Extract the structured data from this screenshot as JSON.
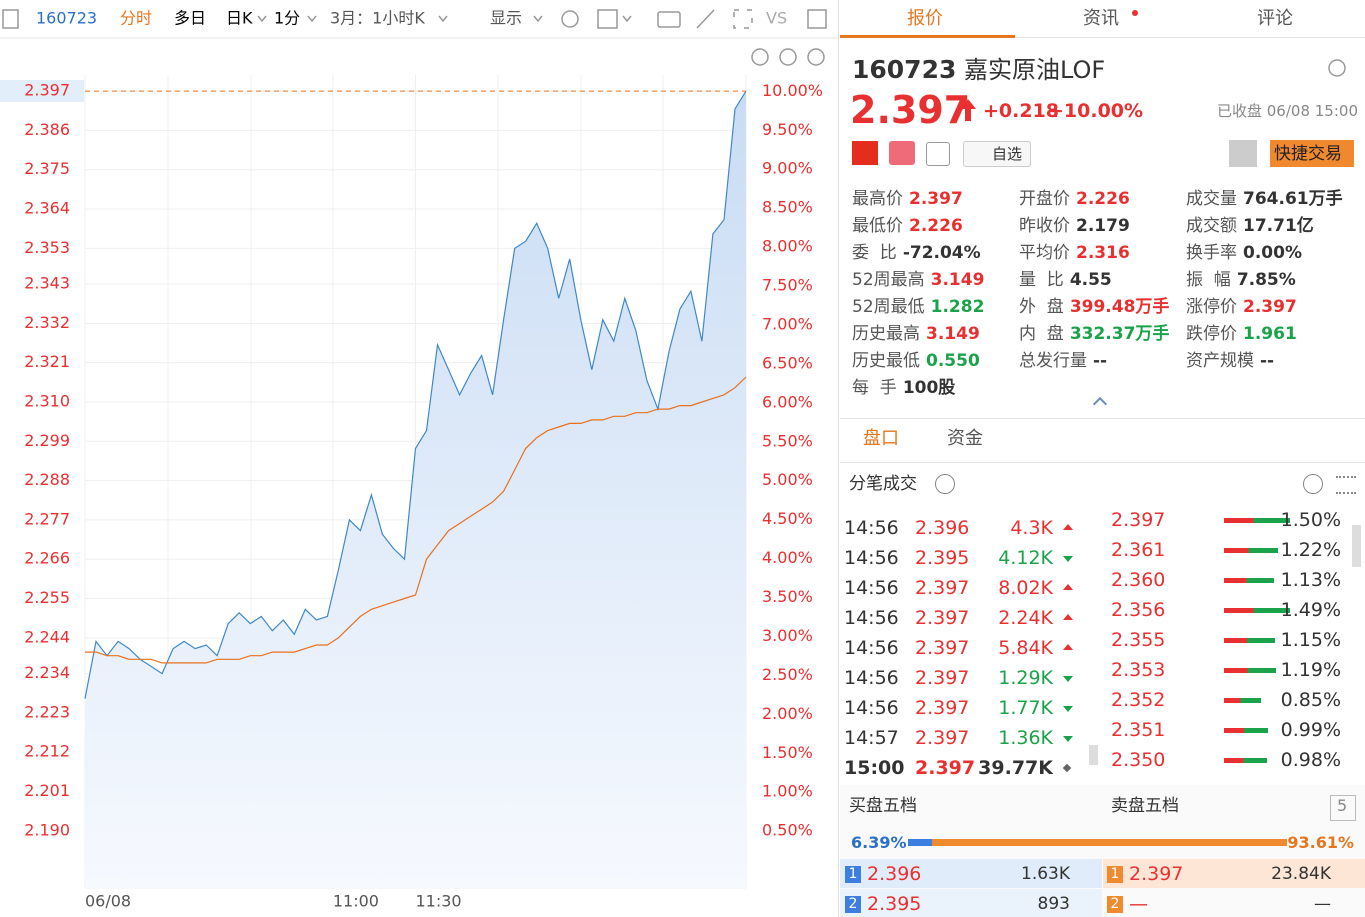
{
  "toolbar": {
    "code": "160723",
    "modes": [
      "分时",
      "多日",
      "日K",
      "1分"
    ],
    "active": 0,
    "range": "3月：1小时K",
    "display": "显示",
    "compare": "VS"
  },
  "chart_data": {
    "type": "line",
    "x": [
      0,
      4,
      8,
      12,
      16,
      20,
      24,
      28,
      32,
      36,
      40,
      44,
      48,
      52,
      56,
      60,
      64,
      68,
      72,
      76,
      80,
      84,
      88,
      92,
      96,
      100,
      104,
      108,
      112,
      116,
      120,
      124,
      128,
      132,
      136,
      140,
      144,
      148,
      152,
      156,
      160,
      164,
      168,
      172,
      176,
      180,
      184,
      188,
      192,
      196,
      200,
      204,
      208,
      212,
      216,
      220,
      224,
      228,
      232,
      236,
      240
    ],
    "xlim": [
      0,
      240
    ],
    "xticks": [
      {
        "value": 0,
        "label": "06/08"
      },
      {
        "value": 90,
        "label": "11:00"
      },
      {
        "value": 120,
        "label": "11:30"
      }
    ],
    "ylim": [
      2.174,
      2.4015
    ],
    "yticks": [
      2.397,
      2.386,
      2.375,
      2.364,
      2.353,
      2.343,
      2.332,
      2.321,
      {
        "value": 2.31,
        "label": "2.310"
      },
      2.299,
      2.288,
      2.277,
      2.266,
      2.255,
      2.244,
      2.234,
      2.223,
      2.212,
      2.201,
      {
        "value": 2.19,
        "label": "2.190"
      }
    ],
    "y2lim": [
      -0.23,
      10.21
    ],
    "y2ticks": [
      {
        "value": 10,
        "label": "10.00%"
      },
      {
        "value": 9.5,
        "label": "9.50%"
      },
      {
        "value": 9,
        "label": "9.00%"
      },
      {
        "value": 8.5,
        "label": "8.50%"
      },
      {
        "value": 8,
        "label": "8.00%"
      },
      {
        "value": 7.5,
        "label": "7.50%"
      },
      {
        "value": 7,
        "label": "7.00%"
      },
      {
        "value": 6.5,
        "label": "6.50%"
      },
      {
        "value": 6,
        "label": "6.00%"
      },
      {
        "value": 5.5,
        "label": "5.50%"
      },
      {
        "value": 5,
        "label": "5.00%"
      },
      {
        "value": 4.5,
        "label": "4.50%"
      },
      {
        "value": 4,
        "label": "4.00%"
      },
      {
        "value": 3.5,
        "label": "3.50%"
      },
      {
        "value": 3,
        "label": "3.00%"
      },
      {
        "value": 2.5,
        "label": "2.50%"
      },
      {
        "value": 2,
        "label": "2.00%"
      },
      {
        "value": 1.5,
        "label": "1.50%"
      },
      {
        "value": 1,
        "label": "1.00%"
      },
      {
        "value": 0.5,
        "label": "0.50%"
      }
    ],
    "grid": true,
    "series": [
      {
        "color": "#3f88c8",
        "area": true,
        "values": [
          2.227,
          2.243,
          2.239,
          2.243,
          2.241,
          2.238,
          2.236,
          2.234,
          2.241,
          2.243,
          2.241,
          2.242,
          2.239,
          2.248,
          2.251,
          2.248,
          2.25,
          2.246,
          2.249,
          2.245,
          2.252,
          2.249,
          2.25,
          2.263,
          2.277,
          2.274,
          2.284,
          2.273,
          2.269,
          2.266,
          2.297,
          2.302,
          2.326,
          2.319,
          2.312,
          2.318,
          2.323,
          2.312,
          2.333,
          2.353,
          2.355,
          2.36,
          2.353,
          2.339,
          2.35,
          2.333,
          2.319,
          2.333,
          2.327,
          2.339,
          2.33,
          2.316,
          2.308,
          2.324,
          2.336,
          2.341,
          2.327,
          2.357,
          2.361,
          2.392,
          2.397
        ]
      },
      {
        "color": "#e8701e",
        "values": [
          2.24,
          2.24,
          2.239,
          2.239,
          2.238,
          2.238,
          2.238,
          2.237,
          2.237,
          2.237,
          2.237,
          2.237,
          2.238,
          2.238,
          2.238,
          2.239,
          2.239,
          2.24,
          2.24,
          2.24,
          2.241,
          2.242,
          2.242,
          2.244,
          2.247,
          2.25,
          2.252,
          2.253,
          2.254,
          2.255,
          2.256,
          2.266,
          2.27,
          2.274,
          2.276,
          2.278,
          2.28,
          2.282,
          2.285,
          2.291,
          2.297,
          2.3,
          2.302,
          2.303,
          2.304,
          2.304,
          2.305,
          2.305,
          2.306,
          2.306,
          2.307,
          2.307,
          2.308,
          2.308,
          2.309,
          2.309,
          2.31,
          2.311,
          2.312,
          2.314,
          2.317
        ]
      }
    ]
  },
  "tabs": [
    "报价",
    "资讯",
    "评论"
  ],
  "quote": {
    "code": "160723",
    "name": "嘉实原油LOF",
    "price": "2.397",
    "change": "+0.218",
    "change_pct": "+10.00%",
    "status": "已收盘 06/08 15:00",
    "watch": "自选",
    "trade": "快捷交易",
    "stats": [
      [
        {
          "label": "最高价",
          "value": "2.397",
          "tone": "up"
        },
        {
          "label": "最低价",
          "value": "2.226",
          "tone": "up"
        },
        {
          "label": "委  比",
          "value": "-72.04%",
          "tone": "flat"
        },
        {
          "label": "52周最高",
          "value": "3.149",
          "tone": "up"
        },
        {
          "label": "52周最低",
          "value": "1.282",
          "tone": "down"
        },
        {
          "label": "历史最高",
          "value": "3.149",
          "tone": "up"
        },
        {
          "label": "历史最低",
          "value": "0.550",
          "tone": "down"
        },
        {
          "label": "每  手",
          "value": "100股",
          "tone": "flat"
        }
      ],
      [
        {
          "label": "开盘价",
          "value": "2.226",
          "tone": "up"
        },
        {
          "label": "昨收价",
          "value": "2.179",
          "tone": "flat"
        },
        {
          "label": "平均价",
          "value": "2.316",
          "tone": "up"
        },
        {
          "label": "量  比",
          "value": "4.55",
          "tone": "flat"
        },
        {
          "label": "外  盘",
          "value": "399.48万手",
          "tone": "up"
        },
        {
          "label": "内  盘",
          "value": "332.37万手",
          "tone": "down"
        },
        {
          "label": "总发行量",
          "value": "--",
          "tone": "flat"
        }
      ],
      [
        {
          "label": "成交量",
          "value": "764.61万手",
          "tone": "flat"
        },
        {
          "label": "成交额",
          "value": "17.71亿",
          "tone": "flat"
        },
        {
          "label": "换手率",
          "value": "0.00%",
          "tone": "flat"
        },
        {
          "label": "振  幅",
          "value": "7.85%",
          "tone": "flat"
        },
        {
          "label": "涨停价",
          "value": "2.397",
          "tone": "up"
        },
        {
          "label": "跌停价",
          "value": "1.961",
          "tone": "down"
        },
        {
          "label": "资产规模",
          "value": "--",
          "tone": "flat"
        }
      ]
    ]
  },
  "panel_tabs": [
    "盘口",
    "资金"
  ],
  "trades": {
    "title": "分笔成交",
    "rows": [
      {
        "time": "14:56",
        "price": "2.396",
        "volume": "4.3K",
        "dir": "up"
      },
      {
        "time": "14:56",
        "price": "2.395",
        "volume": "4.12K",
        "dir": "down"
      },
      {
        "time": "14:56",
        "price": "2.397",
        "volume": "8.02K",
        "dir": "up"
      },
      {
        "time": "14:56",
        "price": "2.397",
        "volume": "2.24K",
        "dir": "up"
      },
      {
        "time": "14:56",
        "price": "2.397",
        "volume": "5.84K",
        "dir": "up"
      },
      {
        "time": "14:56",
        "price": "2.397",
        "volume": "1.29K",
        "dir": "down"
      },
      {
        "time": "14:56",
        "price": "2.397",
        "volume": "1.77K",
        "dir": "down"
      },
      {
        "time": "14:57",
        "price": "2.397",
        "volume": "1.36K",
        "dir": "down"
      },
      {
        "time": "15:00",
        "price": "2.397",
        "volume": "39.77K",
        "dir": "flat"
      }
    ]
  },
  "distribution": {
    "prices": [
      "2.397",
      "2.361",
      "2.360",
      "2.356",
      "2.355",
      "2.353",
      "2.352",
      "2.351",
      "2.350"
    ],
    "values": [
      1.5,
      1.22,
      1.13,
      1.49,
      1.15,
      1.19,
      0.85,
      0.99,
      0.98
    ],
    "value_labels": [
      "1.50%",
      "1.22%",
      "1.13%",
      "1.49%",
      "1.15%",
      "1.19%",
      "0.85%",
      "0.99%",
      "0.98%"
    ]
  },
  "book": {
    "buy_title": "买盘五档",
    "sell_title": "卖盘五档",
    "levels": "5",
    "ratio": {
      "values": [
        6.39,
        93.61
      ],
      "value_labels": [
        "6.39%",
        "93.61%"
      ]
    },
    "buy": [
      {
        "level": "1",
        "price": "2.396",
        "volume": "1.63K"
      },
      {
        "level": "2",
        "price": "2.395",
        "volume": "893"
      }
    ],
    "sell": [
      {
        "level": "1",
        "price": "2.397",
        "volume": "23.84K"
      },
      {
        "level": "2",
        "price": "—",
        "volume": "—"
      }
    ]
  }
}
